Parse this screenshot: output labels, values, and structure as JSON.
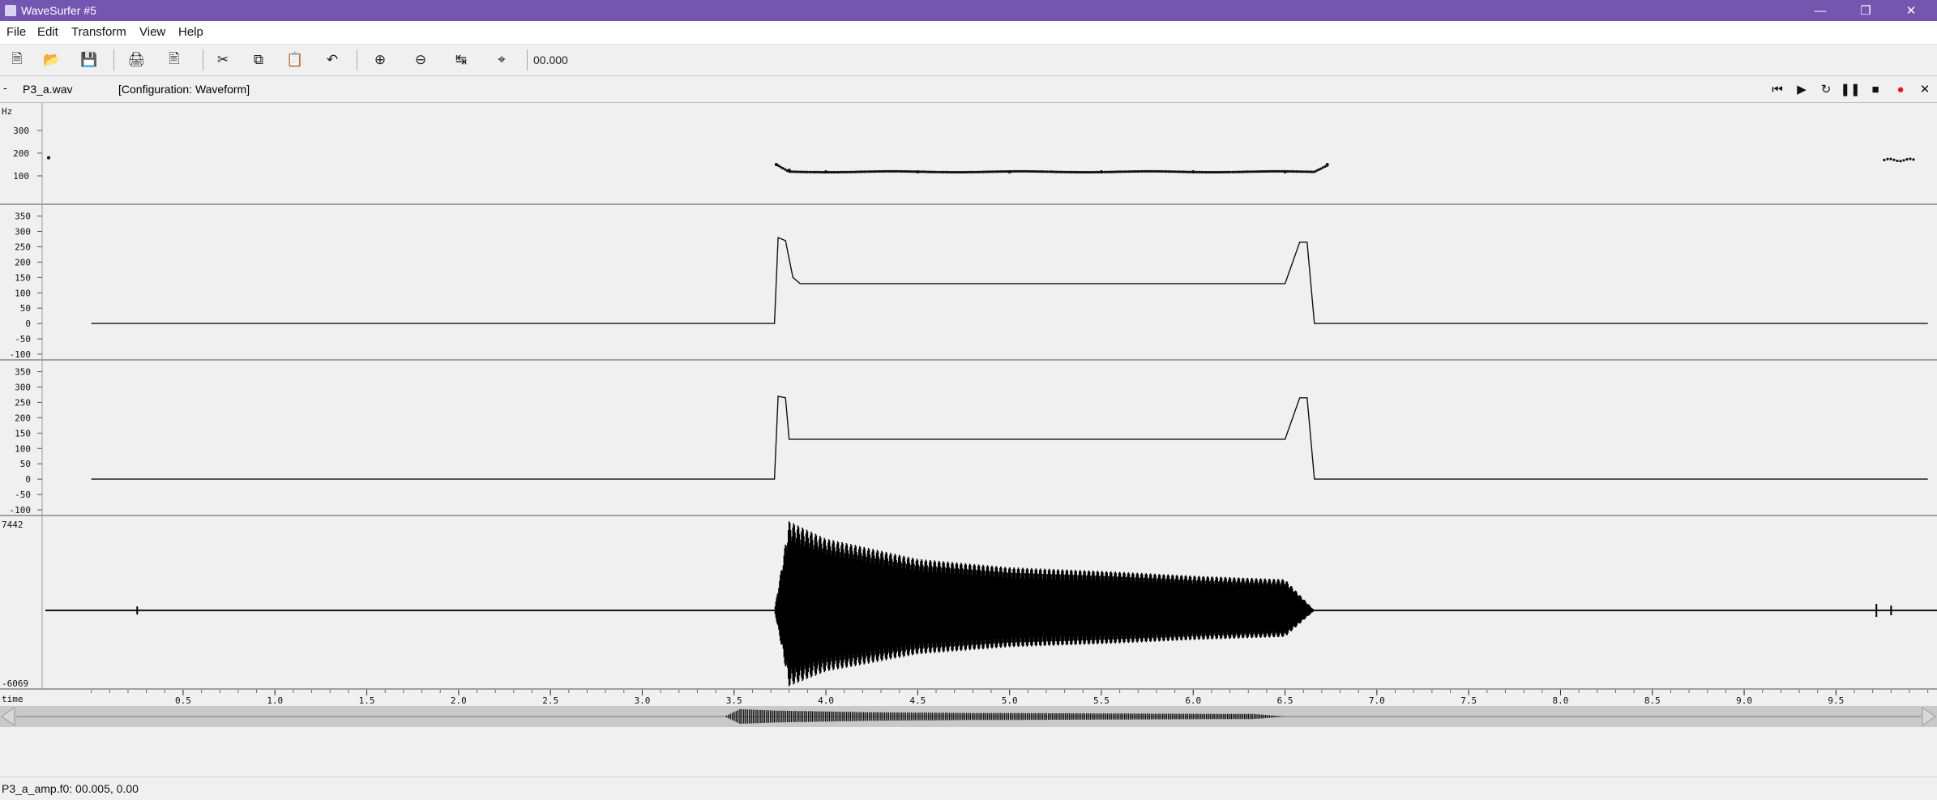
{
  "window": {
    "title": "WaveSurfer #5",
    "minimize_icon": "minimize-icon",
    "maximize_icon": "restore-icon",
    "close_icon": "close-icon"
  },
  "menu": [
    "File",
    "Edit",
    "Transform",
    "View",
    "Help"
  ],
  "toolbar": {
    "buttons": [
      "new-file-icon",
      "open-folder-icon",
      "save-icon",
      "print-icon",
      "print-preview-icon",
      "cut-icon",
      "copy-icon",
      "paste-icon",
      "undo-icon",
      "zoom-in-icon",
      "zoom-out-icon",
      "zoom-all-icon",
      "zoom-selection-icon"
    ],
    "time": "00.000"
  },
  "file": {
    "prefix": "-",
    "name": "P3_a.wav",
    "config": "[Configuration: Waveform]"
  },
  "transport": [
    "skip-to-start-icon",
    "play-icon",
    "play-loop-icon",
    "pause-icon",
    "stop-icon",
    "record-icon",
    "close-pane-icon"
  ],
  "colors": {
    "titlebar": "#7455b0",
    "record": "#e02020",
    "background": "#f0f0f0"
  },
  "panes": [
    {
      "type": "pitch",
      "unit": "Hz",
      "ticks": [
        "300",
        "200",
        "100"
      ]
    },
    {
      "type": "formant",
      "ticks": [
        "350",
        "300",
        "250",
        "200",
        "150",
        "100",
        "50",
        "0",
        "-50",
        "-100"
      ]
    },
    {
      "type": "formant",
      "ticks": [
        "350",
        "300",
        "250",
        "200",
        "150",
        "100",
        "50",
        "0",
        "-50",
        "-100"
      ]
    },
    {
      "type": "waveform",
      "max": "7442",
      "min": "-6069"
    }
  ],
  "time_axis": {
    "label": "time",
    "ticks": [
      "0.5",
      "1.0",
      "1.5",
      "2.0",
      "2.5",
      "3.0",
      "3.5",
      "4.0",
      "4.5",
      "5.0",
      "5.5",
      "6.0",
      "6.5",
      "7.0",
      "7.5",
      "8.0",
      "8.5",
      "9.0",
      "9.5"
    ]
  },
  "status": "P3_a_amp.f0: 00.005, 0.00",
  "chart_data": [
    {
      "type": "scatter",
      "title": "",
      "ylabel": "Hz",
      "xlabel": "time",
      "xlim": [
        0,
        10
      ],
      "ylim": [
        0,
        400
      ],
      "series": [
        {
          "x": [
            3.73,
            3.8,
            4.0,
            4.5,
            5.0,
            5.5,
            6.0,
            6.5,
            6.73
          ],
          "values": [
            150,
            125,
            118,
            118,
            118,
            118,
            118,
            118,
            150
          ]
        }
      ]
    },
    {
      "type": "line",
      "title": "",
      "xlabel": "time",
      "xlim": [
        0,
        10
      ],
      "ylim": [
        -100,
        370
      ],
      "series": [
        {
          "x": [
            0,
            3.72,
            3.74,
            3.78,
            3.82,
            3.86,
            3.9,
            6.5,
            6.58,
            6.62,
            6.66,
            10
          ],
          "values": [
            0,
            0,
            280,
            270,
            150,
            130,
            130,
            130,
            265,
            265,
            0,
            0
          ]
        }
      ]
    },
    {
      "type": "line",
      "title": "",
      "xlabel": "time",
      "xlim": [
        0,
        10
      ],
      "ylim": [
        -100,
        370
      ],
      "series": [
        {
          "x": [
            0,
            3.72,
            3.74,
            3.78,
            3.8,
            6.5,
            6.58,
            6.62,
            6.66,
            10
          ],
          "values": [
            0,
            0,
            270,
            265,
            130,
            130,
            265,
            265,
            0,
            0
          ]
        }
      ]
    },
    {
      "type": "area",
      "title": "",
      "xlabel": "time",
      "xlim": [
        0,
        10
      ],
      "ylim": [
        -6069,
        7442
      ],
      "series": [
        {
          "x": [
            0,
            3.72,
            3.8,
            4.0,
            4.5,
            5.0,
            5.5,
            6.0,
            6.5,
            6.66,
            10
          ],
          "values": [
            0,
            0,
            7442,
            6000,
            4300,
            3600,
            3300,
            2900,
            2600,
            0,
            0
          ]
        }
      ]
    }
  ]
}
